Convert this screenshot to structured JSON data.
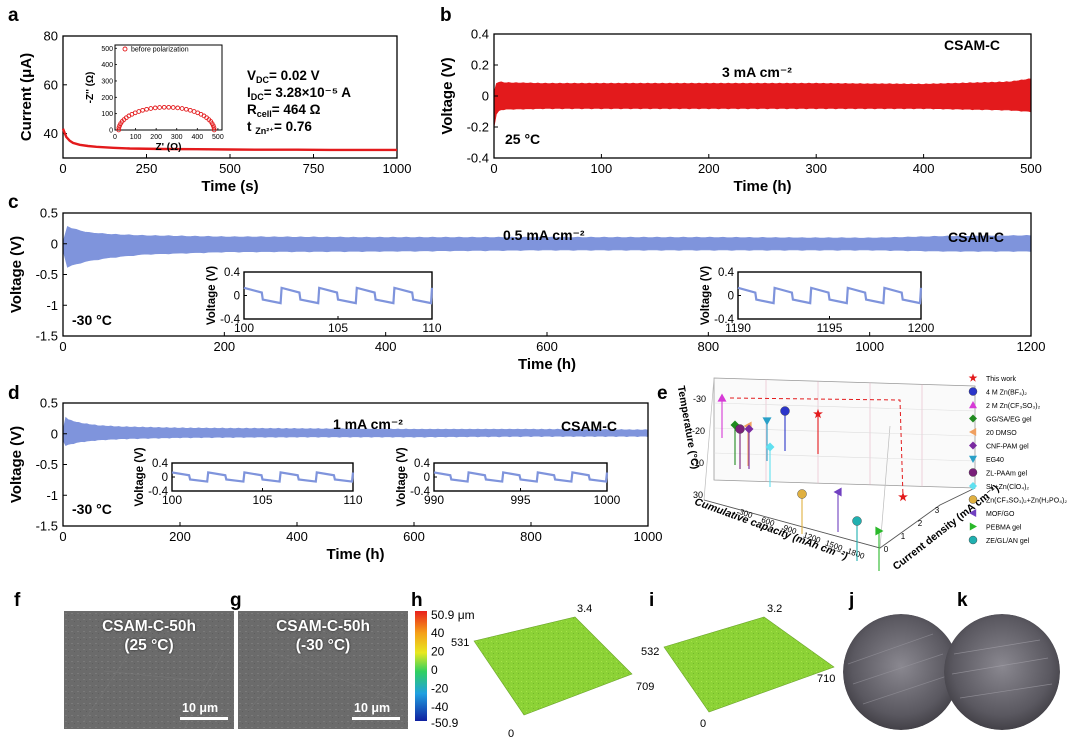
{
  "panel_letters": {
    "a": "a",
    "b": "b",
    "c": "c",
    "d": "d",
    "e": "e",
    "f": "f",
    "g": "g",
    "h": "h",
    "i": "i",
    "j": "j",
    "k": "k"
  },
  "colors": {
    "red": "#e31a1c",
    "blue": "#7f94dc",
    "green": "#8cd236"
  },
  "chart_data": [
    {
      "id": "a",
      "type": "line",
      "xlabel": "Time (s)",
      "ylabel": "Current (μA)",
      "xlim": [
        0,
        1000
      ],
      "ylim": [
        30,
        80
      ],
      "xticks": [
        0,
        250,
        500,
        750,
        1000
      ],
      "yticks": [
        40,
        60,
        80
      ],
      "series": [
        {
          "name": "current",
          "x": [
            0,
            5,
            10,
            20,
            30,
            50,
            75,
            100,
            150,
            200,
            300,
            400,
            500,
            600,
            700,
            800,
            900,
            1000
          ],
          "y": [
            42,
            40.2,
            38.6,
            37.1,
            36.2,
            35.4,
            34.9,
            34.6,
            34.2,
            33.9,
            33.7,
            33.6,
            33.5,
            33.4,
            33.4,
            33.3,
            33.3,
            33.3
          ]
        }
      ],
      "annotations": [
        {
          "main": "V",
          "sub": "DC",
          "rest": "= 0.02 V"
        },
        {
          "main": "I",
          "sub": "DC",
          "rest": "= 3.28×10⁻⁵ A"
        },
        {
          "main": "R",
          "sub": "cell",
          "rest": "= 464 Ω"
        },
        {
          "main": "t ",
          "sub": "Zn²⁺",
          "rest": "= 0.76"
        }
      ],
      "inset": {
        "xlabel": "Z' (Ω)",
        "ylabel": "-Z'' (Ω)",
        "legend": "before polarization",
        "xticks": [
          0,
          100,
          200,
          300,
          400,
          500
        ],
        "yticks": [
          0,
          100,
          200,
          300,
          400,
          500
        ],
        "xlim": [
          0,
          520
        ],
        "ylim": [
          0,
          520
        ],
        "series": {
          "name": "before polarization",
          "center": 250,
          "radius": 232,
          "points": 34
        }
      }
    },
    {
      "id": "b",
      "type": "area",
      "xlabel": "Time  (h)",
      "ylabel": "Voltage (V)",
      "xlim": [
        0,
        500
      ],
      "ylim": [
        -0.4,
        0.4
      ],
      "xticks": [
        0,
        100,
        200,
        300,
        400,
        500
      ],
      "yticks": [
        -0.4,
        -0.2,
        0.0,
        0.2,
        0.4
      ],
      "envelope": {
        "x": [
          0,
          2,
          5,
          10,
          50,
          100,
          200,
          300,
          400,
          480,
          500
        ],
        "upper": [
          0.02,
          0.08,
          0.09,
          0.085,
          0.08,
          0.08,
          0.08,
          0.08,
          0.075,
          0.09,
          0.11
        ],
        "lower": [
          -0.2,
          -0.12,
          -0.09,
          -0.085,
          -0.08,
          -0.08,
          -0.08,
          -0.08,
          -0.08,
          -0.09,
          -0.1
        ]
      },
      "labels": {
        "current": "3 mA cm⁻²",
        "material": "CSAM-C",
        "temp": "25 °C"
      }
    },
    {
      "id": "c",
      "type": "area",
      "xlabel": "Time  (h)",
      "ylabel": "Voltage (V)",
      "xlim": [
        0,
        1200
      ],
      "ylim": [
        -1.5,
        0.5
      ],
      "xticks": [
        0,
        200,
        400,
        600,
        800,
        1000,
        1200
      ],
      "yticks": [
        -1.5,
        -1.0,
        -0.5,
        0.0,
        0.5
      ],
      "envelope": {
        "x": [
          0,
          3,
          10,
          30,
          60,
          100,
          200,
          400,
          600,
          800,
          1000,
          1100,
          1200
        ],
        "upper": [
          0.02,
          0.3,
          0.25,
          0.18,
          0.15,
          0.13,
          0.11,
          0.1,
          0.1,
          0.1,
          0.09,
          0.12,
          0.13
        ],
        "lower": [
          -0.1,
          -0.4,
          -0.35,
          -0.28,
          -0.22,
          -0.17,
          -0.13,
          -0.12,
          -0.1,
          -0.1,
          -0.1,
          -0.12,
          -0.12
        ]
      },
      "labels": {
        "current": "0.5 mA cm⁻²",
        "material": "CSAM-C",
        "temp": "-30 °C"
      },
      "insets": [
        {
          "xlim": [
            100,
            110
          ],
          "xticks": [
            100,
            105,
            110
          ],
          "ylim": [
            -0.4,
            0.4
          ],
          "yticks": [
            -0.4,
            0.0,
            0.4
          ],
          "ylabel": "Voltage (V)",
          "cycles": 5
        },
        {
          "xlim": [
            1190,
            1200
          ],
          "xticks": [
            1190,
            1195,
            1200
          ],
          "ylim": [
            -0.4,
            0.4
          ],
          "yticks": [
            -0.4,
            0.0,
            0.4
          ],
          "ylabel": "Voltage (V)",
          "cycles": 5
        }
      ]
    },
    {
      "id": "d",
      "type": "area",
      "xlabel": "Time  (h)",
      "ylabel": "Voltage (V)",
      "xlim": [
        0,
        1000
      ],
      "ylim": [
        -1.5,
        0.5
      ],
      "xticks": [
        0,
        200,
        400,
        600,
        800,
        1000
      ],
      "yticks": [
        -1.5,
        -1.0,
        -0.5,
        0.0,
        0.5
      ],
      "envelope": {
        "x": [
          0,
          3,
          10,
          30,
          60,
          100,
          200,
          400,
          600,
          800,
          1000
        ],
        "upper": [
          0.05,
          0.28,
          0.22,
          0.17,
          0.13,
          0.11,
          0.09,
          0.08,
          0.07,
          0.07,
          0.06
        ],
        "lower": [
          -0.1,
          -0.2,
          -0.17,
          -0.13,
          -0.1,
          -0.08,
          -0.06,
          -0.05,
          -0.05,
          -0.04,
          -0.04
        ]
      },
      "labels": {
        "current": "1 mA cm⁻²",
        "material": "CSAM-C",
        "temp": "-30 °C"
      },
      "insets": [
        {
          "xlim": [
            100,
            110
          ],
          "xticks": [
            100,
            105,
            110
          ],
          "ylim": [
            -0.4,
            0.4
          ],
          "yticks": [
            -0.4,
            0.0,
            0.4
          ],
          "ylabel": "Voltage (V)",
          "cycles": 5
        },
        {
          "xlim": [
            990,
            1000
          ],
          "xticks": [
            990,
            995,
            1000
          ],
          "ylim": [
            -0.4,
            0.4
          ],
          "yticks": [
            -0.4,
            0.0,
            0.4
          ],
          "ylabel": "Voltage (V)",
          "cycles": 5
        }
      ]
    },
    {
      "id": "e",
      "type": "scatter",
      "xlabel": "Cumulative capacity (mAh cm⁻²)",
      "ylabel": "Temperature (°C)",
      "zlabel": "Current density (mA cm⁻²)",
      "temp_ticks": [
        "-30",
        "-20",
        "-10",
        "30"
      ],
      "cap_ticks": [
        "300",
        "600",
        "900",
        "1200",
        "1500",
        "1800"
      ],
      "cd_ticks": [
        "0",
        "1",
        "2",
        "3"
      ],
      "legend": [
        {
          "label": "This work",
          "marker": "star",
          "color": "#e31a1c"
        },
        {
          "label": "4 M  Zn(BF₄)₂",
          "marker": "circle",
          "color": "#2b35c9"
        },
        {
          "label": "2 M Zn(CF₃SO₃)₂",
          "marker": "triangle",
          "color": "#d63ad6"
        },
        {
          "label": "GG/SA/EG gel",
          "marker": "diamond",
          "color": "#1f8a1f"
        },
        {
          "label": "20 DMSO",
          "marker": "tri-left",
          "color": "#f0a060"
        },
        {
          "label": "CNF-PAM gel",
          "marker": "diamond",
          "color": "#7a2aa0"
        },
        {
          "label": "EG40",
          "marker": "tri-down",
          "color": "#2aa0c8"
        },
        {
          "label": "ZL-PAAm gel",
          "marker": "hexagon",
          "color": "#7a1f7a"
        },
        {
          "label": "SL+Zn(ClO₄)₂",
          "marker": "diamond",
          "color": "#60e0f0"
        },
        {
          "label": "Zn(CF₃SO₃)₂+Zn(H₂PO₄)₂",
          "marker": "hexagon",
          "color": "#e0b040"
        },
        {
          "label": "MOF/GO",
          "marker": "tri-left",
          "color": "#7040c0"
        },
        {
          "label": "PEBMA gel",
          "marker": "tri-right",
          "color": "#2ab82a"
        },
        {
          "label": "ZE/GL/AN gel",
          "marker": "hexagon",
          "color": "#20b0b0"
        }
      ]
    }
  ],
  "panel_f": {
    "line1": "CSAM-C-50h",
    "line2": "(25 °C)",
    "scale": "10 μm"
  },
  "panel_g": {
    "line1": "CSAM-C-50h",
    "line2": "(-30 °C)",
    "scale": "10 μm"
  },
  "panel_h": {
    "colorbar_max": "50.9 μm",
    "colorbar_ticks": [
      "40",
      "20",
      "0",
      "-20",
      "-40"
    ],
    "colorbar_min": "-50.9",
    "axis_top": "3.4",
    "axis_left": "531",
    "axis_right": "709",
    "axis_bottom": "0"
  },
  "panel_i": {
    "axis_top": "3.2",
    "axis_left": "532",
    "axis_right": "710",
    "axis_bottom": "0"
  }
}
